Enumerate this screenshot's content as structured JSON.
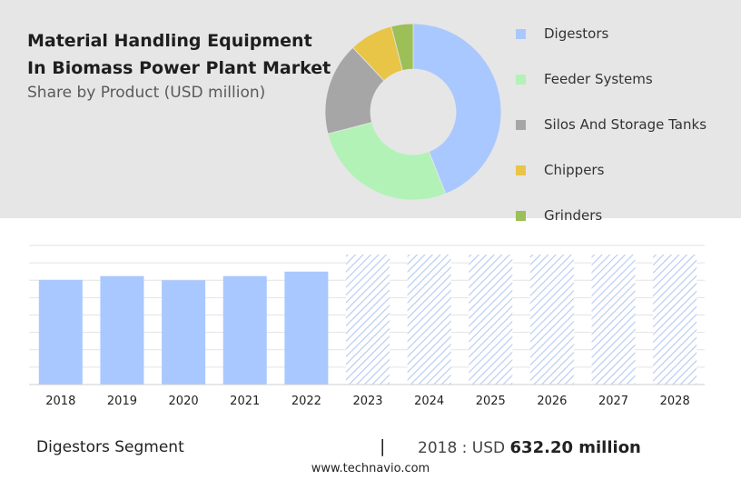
{
  "header": {
    "title": "Material Handling Equipment In Biomass Power Plant Market",
    "subtitle": "Share by Product (USD million)"
  },
  "chart_data": [
    {
      "type": "pie",
      "donut": true,
      "categories": [
        "Digestors",
        "Feeder Systems",
        "Silos And Storage Tanks",
        "Chippers",
        "Grinders"
      ],
      "values": [
        44,
        27,
        17,
        8,
        4
      ],
      "colors": [
        "#a9c8ff",
        "#b3f2b7",
        "#a6a6a6",
        "#e8c547",
        "#9cbf57"
      ],
      "legend_position": "right"
    },
    {
      "type": "bar",
      "categories": [
        "2018",
        "2019",
        "2020",
        "2021",
        "2022",
        "2023",
        "2024",
        "2025",
        "2026",
        "2027",
        "2028"
      ],
      "values": [
        632.2,
        655,
        630,
        655,
        682,
        null,
        null,
        null,
        null,
        null,
        null
      ],
      "forecast_categories": [
        "2023",
        "2024",
        "2025",
        "2026",
        "2027",
        "2028"
      ],
      "color": "#a9c8ff",
      "forecast_color": "#b5c9f2",
      "ylim": [
        0,
        840
      ],
      "grid": true
    }
  ],
  "footer": {
    "segment_label": "Digestors Segment",
    "separator": "|",
    "year_text": "2018 : USD",
    "value_text": "632.20 million",
    "url": "www.technavio.com"
  }
}
